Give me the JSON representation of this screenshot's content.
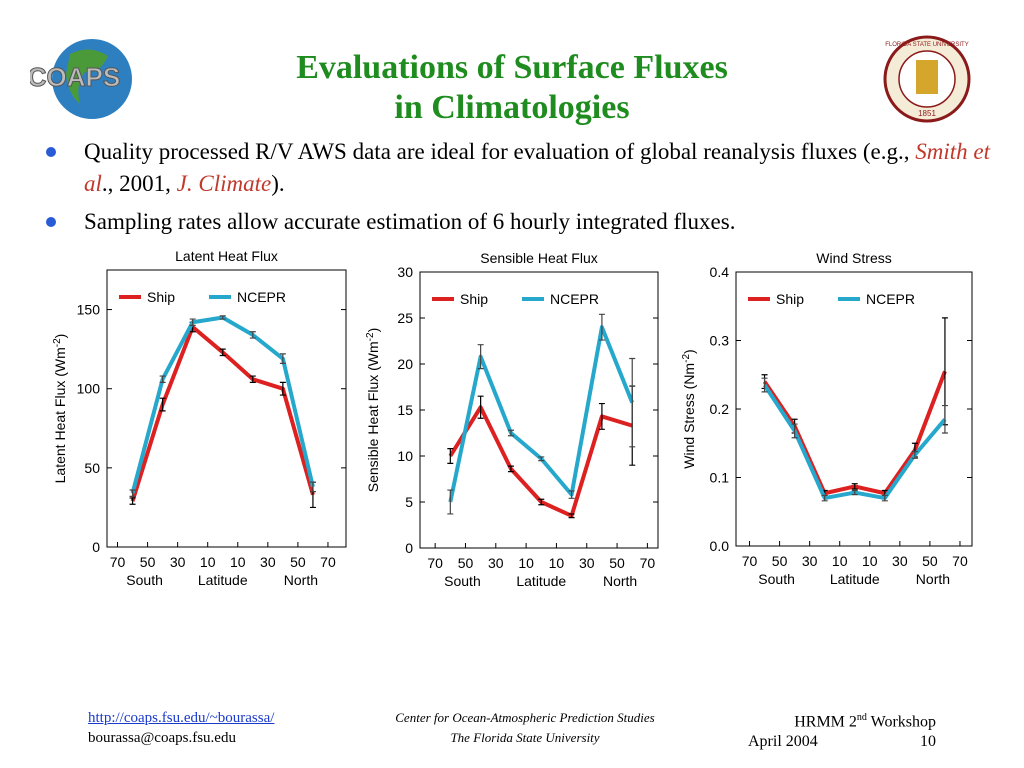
{
  "logo": {
    "text": "COAPS"
  },
  "seal": {
    "text": "FLORIDA STATE UNIVERSITY",
    "year": "1851"
  },
  "title": [
    "Evaluations of Surface Fluxes",
    "in Climatologies"
  ],
  "bullets": [
    [
      "Quality processed R/V AWS data are ideal for evaluation of global reanalysis fluxes (e.g., ",
      "Smith et al",
      "., 2001, ",
      "J. Climate",
      ")."
    ],
    [
      "Sampling rates allow accurate estimation of 6 hourly integrated fluxes."
    ]
  ],
  "chart_data": [
    {
      "type": "line",
      "title": "Latent Heat Flux",
      "ylabel": "Latent Heat Flux (Wm",
      "ylabel_sup": "-2",
      "ylabel_end": ")",
      "x_sublabels": [
        "South",
        "Latitude",
        "North"
      ],
      "x": [
        -60,
        -40,
        -20,
        0,
        20,
        40,
        60
      ],
      "series": [
        {
          "name": "Ship",
          "color": "#dd2020",
          "values": [
            29,
            90,
            139,
            123,
            106,
            100,
            33
          ],
          "errors": [
            2,
            4,
            3,
            2,
            2,
            4,
            8
          ]
        },
        {
          "name": "NCEPR",
          "color": "#26a8cc",
          "values": [
            34,
            106,
            142,
            145,
            134,
            119,
            38
          ],
          "errors": [
            2,
            2,
            2,
            1,
            2,
            3,
            3
          ]
        }
      ],
      "xlim": [
        -77,
        82
      ],
      "ylim": [
        0,
        175
      ],
      "xticks": [
        {
          "value": -70,
          "label": "70"
        },
        {
          "value": -50,
          "label": "50"
        },
        {
          "value": -30,
          "label": "30"
        },
        {
          "value": -10,
          "label": "10"
        },
        10,
        30,
        50,
        70
      ],
      "yticks": [
        0,
        50,
        100,
        150
      ],
      "legend": "upper left"
    },
    {
      "type": "line",
      "title": "Sensible Heat Flux",
      "ylabel": "Sensible Heat Flux (Wm",
      "ylabel_sup": "-2",
      "ylabel_end": ")",
      "x_sublabels": [
        "South",
        "Latitude",
        "North"
      ],
      "x": [
        -60,
        -40,
        -20,
        0,
        20,
        40,
        60
      ],
      "series": [
        {
          "name": "Ship",
          "color": "#dd2020",
          "values": [
            10,
            15.3,
            8.6,
            5,
            3.5,
            14.3,
            13.3
          ],
          "errors": [
            0.8,
            1.2,
            0.3,
            0.3,
            0.2,
            1.4,
            4.3
          ]
        },
        {
          "name": "NCEPR",
          "color": "#26a8cc",
          "values": [
            5,
            20.8,
            12.5,
            9.7,
            5.8,
            24,
            15.8
          ],
          "errors": [
            1.3,
            1.3,
            0.3,
            0.2,
            0.4,
            1.4,
            4.8
          ]
        }
      ],
      "xlim": [
        -80,
        77
      ],
      "ylim": [
        0,
        30
      ],
      "xticks": [
        {
          "value": -70,
          "label": "70"
        },
        {
          "value": -50,
          "label": "50"
        },
        {
          "value": -30,
          "label": "30"
        },
        {
          "value": -10,
          "label": "10"
        },
        10,
        30,
        50,
        70
      ],
      "yticks": [
        0,
        5,
        10,
        15,
        20,
        25,
        30
      ],
      "legend": "upper left"
    },
    {
      "type": "line",
      "title": "Wind Stress",
      "ylabel": "Wind Stress (Nm",
      "ylabel_sup": "-2",
      "ylabel_end": ")",
      "x_sublabels": [
        "South",
        "Latitude",
        "North"
      ],
      "x": [
        -60,
        -40,
        -20,
        0,
        20,
        40,
        60
      ],
      "series": [
        {
          "name": "Ship",
          "color": "#dd2020",
          "values": [
            0.24,
            0.175,
            0.077,
            0.087,
            0.077,
            0.14,
            0.255
          ],
          "errors": [
            0.01,
            0.01,
            0.004,
            0.004,
            0.004,
            0.01,
            0.078
          ]
        },
        {
          "name": "NCEPR",
          "color": "#26a8cc",
          "values": [
            0.235,
            0.168,
            0.07,
            0.078,
            0.07,
            0.133,
            0.185
          ],
          "errors": [
            0.01,
            0.01,
            0.004,
            0.003,
            0.004,
            0.005,
            0.02
          ]
        }
      ],
      "xlim": [
        -79,
        78
      ],
      "ylim": [
        0,
        0.4
      ],
      "xticks": [
        {
          "value": -70,
          "label": "70"
        },
        {
          "value": -50,
          "label": "50"
        },
        {
          "value": -30,
          "label": "30"
        },
        {
          "value": -10,
          "label": "10"
        },
        10,
        30,
        50,
        70
      ],
      "yticks": [
        {
          "value": 0,
          "label": "0.0"
        },
        0.1,
        0.2,
        0.3,
        0.4
      ],
      "legend": "upper left"
    }
  ],
  "footer": {
    "url": "http://coaps.fsu.edu/~bourassa/",
    "email": "bourassa@coaps.fsu.edu",
    "center": "Center for Ocean-Atmospheric Prediction Studies",
    "university": "The Florida State University",
    "event": "HRMM 2",
    "event_sup": "nd",
    "event_end": " Workshop",
    "date": "April 2004",
    "page": "10"
  }
}
